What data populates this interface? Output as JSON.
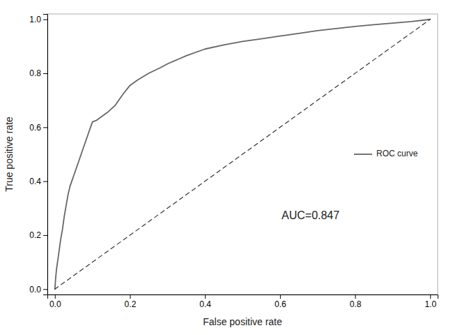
{
  "chart_data": {
    "type": "line",
    "xlabel": "False positive rate",
    "ylabel": "True positive rate",
    "annotation": "AUC=0.847",
    "legend": "right",
    "grid": false,
    "xlim": [
      -0.02,
      1.02
    ],
    "ylim": [
      -0.02,
      1.02
    ],
    "xticks": [
      {
        "value": 0.0,
        "label": "0.0"
      },
      0.2,
      0.4,
      0.6,
      0.8,
      {
        "value": 1.0,
        "label": "1.0"
      }
    ],
    "yticks": [
      {
        "value": 0.0,
        "label": "0.0"
      },
      0.2,
      0.4,
      0.6,
      0.8,
      {
        "value": 1.0,
        "label": "1.0"
      }
    ],
    "x": [
      0.0,
      0.002,
      0.004,
      0.006,
      0.008,
      0.01,
      0.013,
      0.016,
      0.02,
      0.025,
      0.03,
      0.035,
      0.04,
      0.045,
      0.05,
      0.055,
      0.06,
      0.065,
      0.07,
      0.075,
      0.08,
      0.09,
      0.1,
      0.11,
      0.12,
      0.14,
      0.16,
      0.18,
      0.2,
      0.22,
      0.25,
      0.28,
      0.3,
      0.35,
      0.4,
      0.45,
      0.5,
      0.55,
      0.6,
      0.65,
      0.7,
      0.75,
      0.8,
      0.85,
      0.9,
      0.95,
      1.0
    ],
    "series": [
      {
        "name": "ROC curve",
        "color": "#666666",
        "line_style": "solid",
        "values": [
          0.0,
          0.04,
          0.07,
          0.09,
          0.11,
          0.13,
          0.16,
          0.19,
          0.22,
          0.27,
          0.31,
          0.35,
          0.38,
          0.4,
          0.42,
          0.44,
          0.46,
          0.48,
          0.5,
          0.52,
          0.54,
          0.58,
          0.62,
          0.625,
          0.635,
          0.655,
          0.68,
          0.72,
          0.755,
          0.775,
          0.8,
          0.82,
          0.835,
          0.865,
          0.89,
          0.905,
          0.918,
          0.928,
          0.938,
          0.948,
          0.958,
          0.966,
          0.974,
          0.98,
          0.986,
          0.992,
          1.0
        ]
      },
      {
        "color": "#333333",
        "line_style": "dashed",
        "x": [
          0,
          1
        ],
        "values": [
          0,
          1
        ]
      }
    ]
  }
}
